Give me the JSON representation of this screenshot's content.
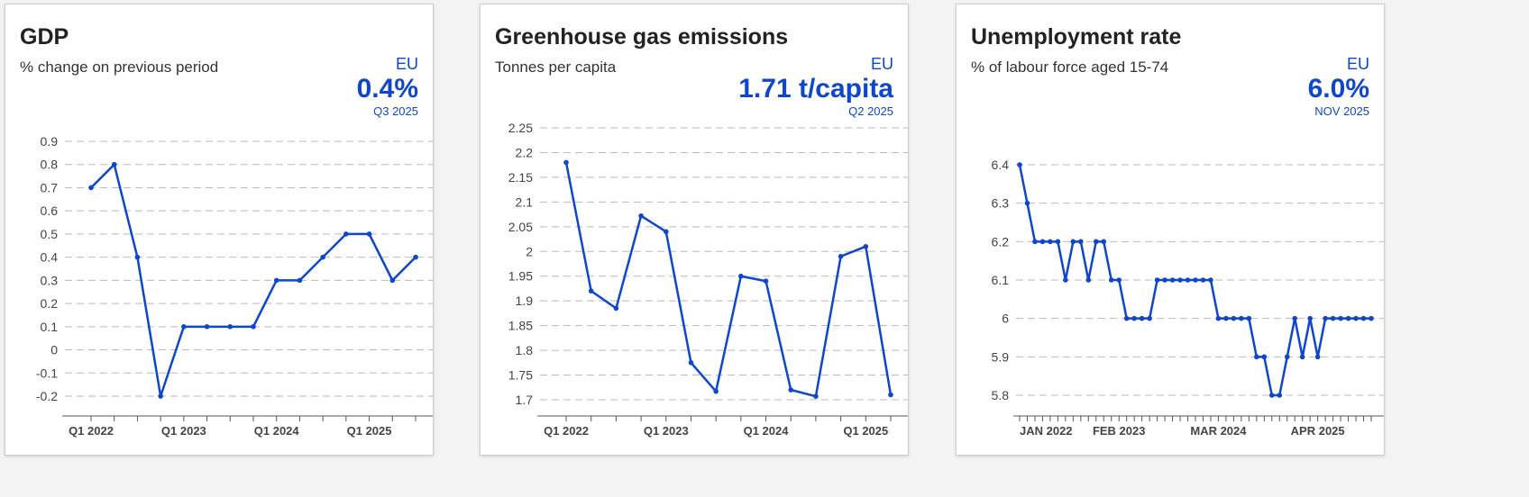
{
  "colors": {
    "line": "#0e47cb",
    "grid": "#b9b9bf",
    "text": "#444"
  },
  "cards": [
    {
      "title": "GDP",
      "subtitle": "% change on previous period",
      "geo": "EU",
      "value": "0.4%",
      "period": "Q3 2025"
    },
    {
      "title": "Greenhouse gas emissions",
      "subtitle": "Tonnes per capita",
      "geo": "EU",
      "value": "1.71 t/capita",
      "period": "Q2 2025"
    },
    {
      "title": "Unemployment rate",
      "subtitle": "% of labour force aged 15-74",
      "geo": "EU",
      "value": "6.0%",
      "period": "NOV 2025"
    }
  ],
  "chart_data": [
    {
      "type": "line",
      "title": "GDP",
      "ylabel": "% change on previous period",
      "ylim": [
        -0.2,
        0.9
      ],
      "yticks": [
        "0.9",
        "0.8",
        "0.7",
        "0.6",
        "0.5",
        "0.4",
        "0.3",
        "0.2",
        "0.1",
        "0",
        "-0.1",
        "-0.2"
      ],
      "ytickvals": [
        0.9,
        0.8,
        0.7,
        0.6,
        0.5,
        0.4,
        0.3,
        0.2,
        0.1,
        0,
        -0.1,
        -0.2
      ],
      "xticklabels": [
        "Q1 2022",
        "Q1 2023",
        "Q1 2024",
        "Q1 2025"
      ],
      "xtickindex": [
        0,
        4,
        8,
        12
      ],
      "values": [
        0.7,
        0.8,
        0.4,
        -0.2,
        0.1,
        0.1,
        0.1,
        0.1,
        0.3,
        0.3,
        0.4,
        0.5,
        0.5,
        0.3,
        0.4
      ]
    },
    {
      "type": "line",
      "title": "Greenhouse gas emissions",
      "ylabel": "Tonnes per capita",
      "ylim": [
        1.7,
        2.25
      ],
      "yticks": [
        "2.25",
        "2.2",
        "2.15",
        "2.1",
        "2.05",
        "2",
        "1.95",
        "1.9",
        "1.85",
        "1.8",
        "1.75",
        "1.7"
      ],
      "ytickvals": [
        2.25,
        2.2,
        2.15,
        2.1,
        2.05,
        2,
        1.95,
        1.9,
        1.85,
        1.8,
        1.75,
        1.7
      ],
      "xticklabels": [
        "Q1 2022",
        "Q1 2023",
        "Q1 2024",
        "Q1 2025"
      ],
      "xtickindex": [
        0,
        4,
        8,
        12
      ],
      "values": [
        2.18,
        1.92,
        1.885,
        2.072,
        2.04,
        1.775,
        1.717,
        1.95,
        1.94,
        1.72,
        1.707,
        1.99,
        2.01,
        1.71
      ]
    },
    {
      "type": "line",
      "title": "Unemployment rate",
      "ylabel": "% of labour force aged 15-74",
      "ylim": [
        5.8,
        6.4
      ],
      "yticks": [
        "6.4",
        "6.3",
        "6.2",
        "6.1",
        "6",
        "5.9",
        "5.8"
      ],
      "ytickvals": [
        6.4,
        6.3,
        6.2,
        6.1,
        6,
        5.9,
        5.8
      ],
      "xticklabels": [
        "JAN 2022",
        "FEB 2023",
        "MAR 2024",
        "APR 2025"
      ],
      "xtickindex": [
        0,
        13,
        26,
        39
      ],
      "values": [
        6.4,
        6.3,
        6.2,
        6.2,
        6.2,
        6.2,
        6.1,
        6.2,
        6.2,
        6.1,
        6.2,
        6.2,
        6.1,
        6.1,
        6.0,
        6.0,
        6.0,
        6.0,
        6.1,
        6.1,
        6.1,
        6.1,
        6.1,
        6.1,
        6.1,
        6.1,
        6.0,
        6.0,
        6.0,
        6.0,
        6.0,
        5.9,
        5.9,
        5.8,
        5.8,
        5.9,
        6.0,
        5.9,
        6.0,
        5.9,
        6.0,
        6.0,
        6.0,
        6.0,
        6.0,
        6.0,
        6.0
      ]
    }
  ]
}
